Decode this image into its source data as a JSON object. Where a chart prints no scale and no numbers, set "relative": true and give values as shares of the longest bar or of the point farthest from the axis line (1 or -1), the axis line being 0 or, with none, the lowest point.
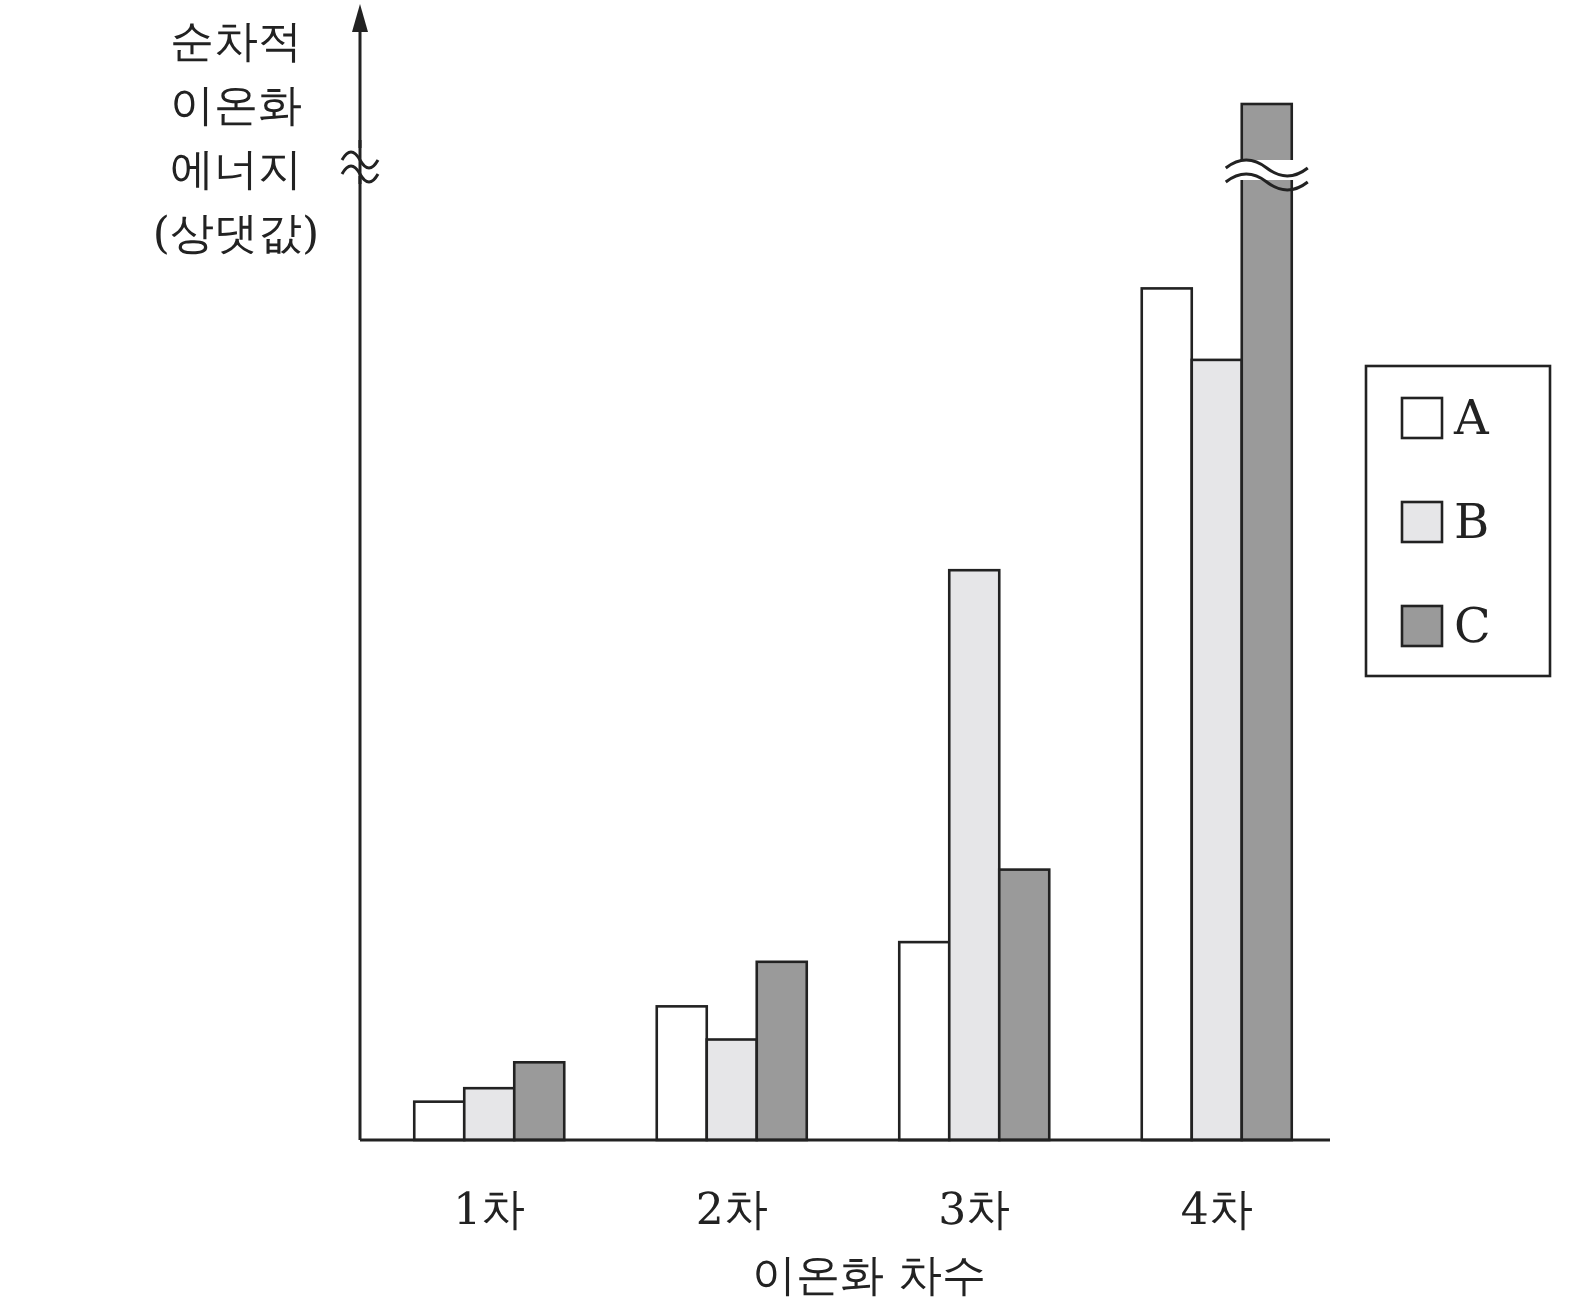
{
  "chart_data": {
    "type": "bar",
    "relative": true,
    "ylabel": "순차적 이온화 에너지 (상댓값)",
    "xlabel": "이온화 차수",
    "categories": [
      "1차",
      "2차",
      "3차",
      "4차"
    ],
    "legend": "right",
    "series": [
      {
        "name": "A",
        "color": "#ffffff",
        "values": [
          0.037,
          0.129,
          0.191,
          0.822
        ]
      },
      {
        "name": "B",
        "color": "#e6e6e8",
        "values": [
          0.05,
          0.097,
          0.55,
          0.753
        ]
      },
      {
        "name": "C",
        "color": "#9a9a9a",
        "values": [
          0.075,
          0.172,
          0.261,
          1
        ]
      }
    ]
  }
}
